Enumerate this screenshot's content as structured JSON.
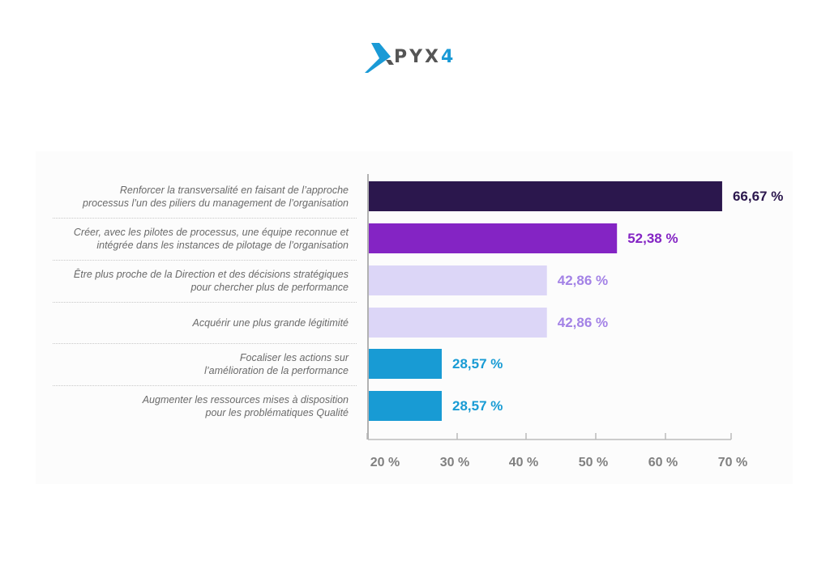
{
  "logo": {
    "text": "PYX",
    "digit": "4"
  },
  "chart_data": {
    "type": "bar",
    "orientation": "horizontal",
    "title": "",
    "xlabel": "",
    "ylabel": "",
    "xlim": [
      20,
      70
    ],
    "ticks": [
      "20 %",
      "30 %",
      "40 %",
      "50 %",
      "60 %",
      "70 %"
    ],
    "categories": [
      [
        "Renforcer la transversalité en faisant de l’approche",
        "processus l’un des piliers du management de l’organisation"
      ],
      [
        "Créer, avec les pilotes de processus, une équipe reconnue et",
        "intégrée dans les instances de pilotage de l’organisation"
      ],
      [
        "Être plus proche de la Direction et des décisions stratégiques",
        "pour chercher plus de performance"
      ],
      [
        "Acquérir une plus grande légitimité"
      ],
      [
        "Focaliser les actions sur",
        "l’amélioration de la performance"
      ],
      [
        "Augmenter les ressources mises à disposition",
        "pour les problématiques Qualité"
      ]
    ],
    "values": [
      66.67,
      52.38,
      42.86,
      42.86,
      28.57,
      28.57
    ],
    "value_labels": [
      "66,67 %",
      "52,38 %",
      "42,86 %",
      "42,86 %",
      "28,57 %",
      "28,57 %"
    ],
    "bar_colors": [
      "#2b174d",
      "#8424c4",
      "#dcd6f7",
      "#dcd6f7",
      "#189bd4",
      "#189bd4"
    ],
    "label_colors": [
      "#2b174d",
      "#8424c4",
      "#a382e6",
      "#a382e6",
      "#189bd4",
      "#189bd4"
    ],
    "grid": false
  }
}
